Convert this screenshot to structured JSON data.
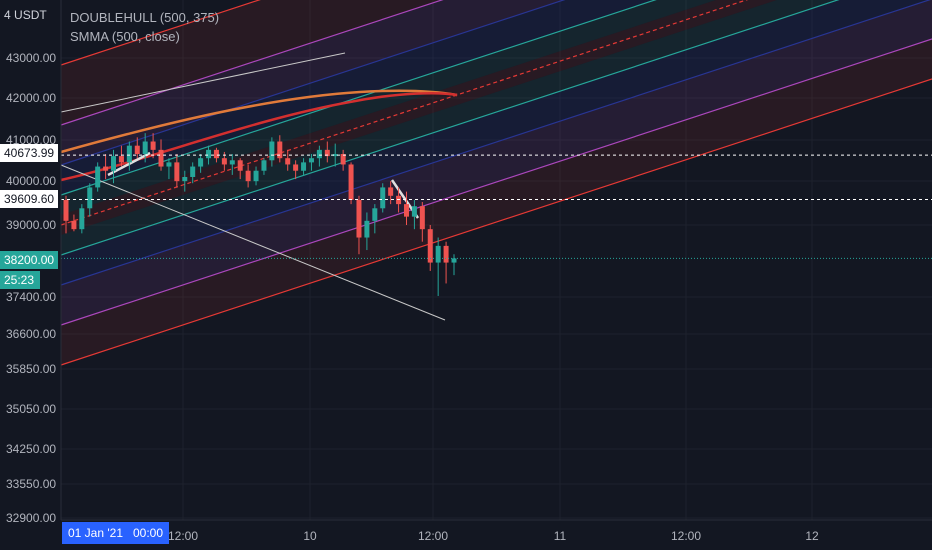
{
  "ticker": {
    "label": "USDT",
    "prefix": "4"
  },
  "legend": {
    "line1": "DOUBLEHULL (500, 375)",
    "line2": "SMMA (500, close)"
  },
  "price_tags": {
    "hline_upper": "40673.99",
    "hline_lower": "39609.60",
    "last_price": "38200.00",
    "countdown": "25:23"
  },
  "date_tag": "01 Jan '21   00:00",
  "colors": {
    "background": "#131722",
    "up": "#26a69a",
    "down": "#ef5350",
    "red_line": "#e53935",
    "violet_line": "#ab47bc",
    "blue_line": "#283593",
    "green_line": "#26a69a",
    "smma_orange": "#e07a3a",
    "smma_red": "#d32f2f",
    "white_line": "#c8c8c8"
  },
  "chart_data": {
    "type": "candlestick",
    "title": "",
    "y_tick_labels": [
      "43000.00",
      "42000.00",
      "41000.00",
      "40000.00",
      "39000.00",
      "37400.00",
      "36600.00",
      "35850.00",
      "35050.00",
      "34250.00",
      "33550.00",
      "32900.00"
    ],
    "x_tick_labels": [
      "12:00",
      "10",
      "12:00",
      "11",
      "12:00",
      "12"
    ],
    "ylim": [
      32900,
      43500
    ],
    "horizontal_lines": [
      40673.99,
      39609.6
    ],
    "last_price": 38200.0,
    "candles": [
      [
        39600,
        39700,
        38800,
        39100
      ],
      [
        39100,
        39250,
        38850,
        38900
      ],
      [
        38900,
        39500,
        38800,
        39400
      ],
      [
        39400,
        40000,
        39200,
        39900
      ],
      [
        39900,
        40500,
        39800,
        40400
      ],
      [
        40400,
        40700,
        40100,
        40300
      ],
      [
        40300,
        40800,
        40000,
        40650
      ],
      [
        40650,
        40900,
        40400,
        40500
      ],
      [
        40500,
        41000,
        40300,
        40900
      ],
      [
        40900,
        41100,
        40600,
        40700
      ],
      [
        40700,
        41200,
        40500,
        41000
      ],
      [
        41000,
        41200,
        40600,
        40800
      ],
      [
        40800,
        41050,
        40300,
        40400
      ],
      [
        40400,
        40600,
        40100,
        40500
      ],
      [
        40500,
        40700,
        39900,
        40050
      ],
      [
        40050,
        40300,
        39800,
        40150
      ],
      [
        40150,
        40500,
        40000,
        40400
      ],
      [
        40400,
        40700,
        40250,
        40600
      ],
      [
        40600,
        40900,
        40450,
        40800
      ],
      [
        40800,
        40850,
        40500,
        40600
      ],
      [
        40600,
        40750,
        40300,
        40450
      ],
      [
        40450,
        40700,
        40200,
        40550
      ],
      [
        40550,
        40600,
        40100,
        40300
      ],
      [
        40300,
        40450,
        39900,
        40050
      ],
      [
        40050,
        40400,
        39950,
        40300
      ],
      [
        40300,
        40600,
        40200,
        40550
      ],
      [
        40550,
        41100,
        40400,
        41000
      ],
      [
        41000,
        41150,
        40500,
        40600
      ],
      [
        40600,
        40800,
        40300,
        40450
      ],
      [
        40450,
        40550,
        40100,
        40300
      ],
      [
        40300,
        40600,
        40200,
        40500
      ],
      [
        40500,
        40700,
        40300,
        40600
      ],
      [
        40600,
        40900,
        40400,
        40800
      ],
      [
        40800,
        41000,
        40500,
        40650
      ],
      [
        40650,
        40950,
        40400,
        40700
      ],
      [
        40700,
        40800,
        40300,
        40450
      ],
      [
        40450,
        40500,
        39500,
        39600
      ],
      [
        39600,
        39700,
        38300,
        38700
      ],
      [
        38700,
        39300,
        38400,
        39100
      ],
      [
        39100,
        39500,
        38800,
        39400
      ],
      [
        39400,
        40000,
        39300,
        39900
      ],
      [
        39900,
        40050,
        39500,
        39700
      ],
      [
        39700,
        39900,
        39300,
        39500
      ],
      [
        39500,
        39800,
        39000,
        39200
      ],
      [
        39200,
        39600,
        38900,
        39450
      ],
      [
        39450,
        39550,
        38600,
        38900
      ],
      [
        38900,
        39000,
        37900,
        38100
      ],
      [
        38100,
        38700,
        37300,
        38500
      ],
      [
        38500,
        38600,
        37600,
        38100
      ],
      [
        38100,
        38300,
        37800,
        38200
      ]
    ],
    "series": [
      {
        "name": "DOUBLEHULL (500, 375)",
        "type": "channel"
      },
      {
        "name": "SMMA (500, close)",
        "type": "line"
      }
    ]
  }
}
